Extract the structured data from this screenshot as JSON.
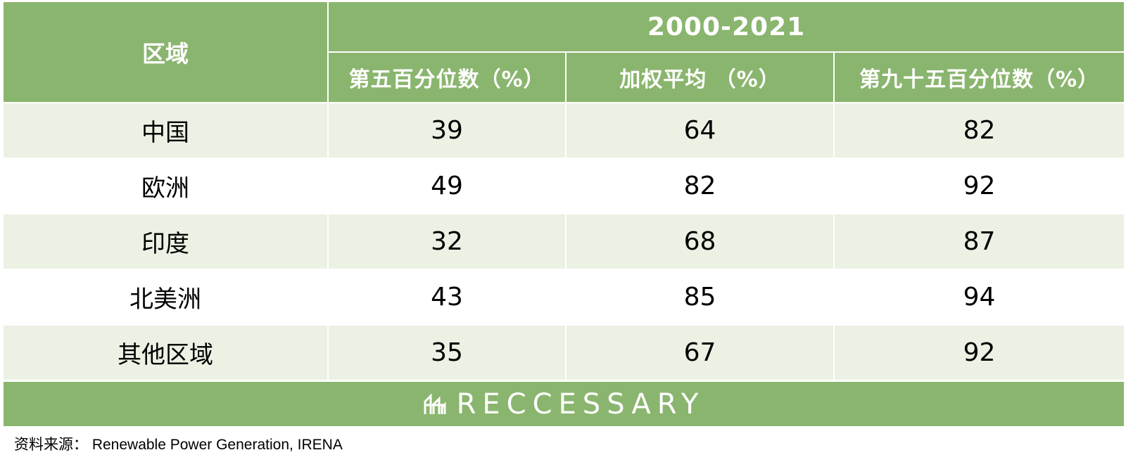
{
  "header": {
    "region_label": "区域",
    "period_label": "2000-2021",
    "columns": [
      "第五百分位数（%）",
      "加权平均 （%）",
      "第九十五百分位数（%）"
    ]
  },
  "rows": [
    {
      "region": "中国",
      "p5": "39",
      "weighted_avg": "64",
      "p95": "82"
    },
    {
      "region": "欧洲",
      "p5": "49",
      "weighted_avg": "82",
      "p95": "92"
    },
    {
      "region": "印度",
      "p5": "32",
      "weighted_avg": "68",
      "p95": "87"
    },
    {
      "region": "北美洲",
      "p5": "43",
      "weighted_avg": "85",
      "p95": "94"
    },
    {
      "region": "其他区域",
      "p5": "35",
      "weighted_avg": "67",
      "p95": "92"
    }
  ],
  "brand": {
    "name": "RECCESSARY",
    "logo_icon": "reccessary-logo-icon"
  },
  "source": "资料来源： Renewable Power Generation, IRENA",
  "colors": {
    "header_bg": "#8ab56e",
    "shaded_row_bg": "#ebf2e4",
    "header_text": "#ffffff"
  }
}
